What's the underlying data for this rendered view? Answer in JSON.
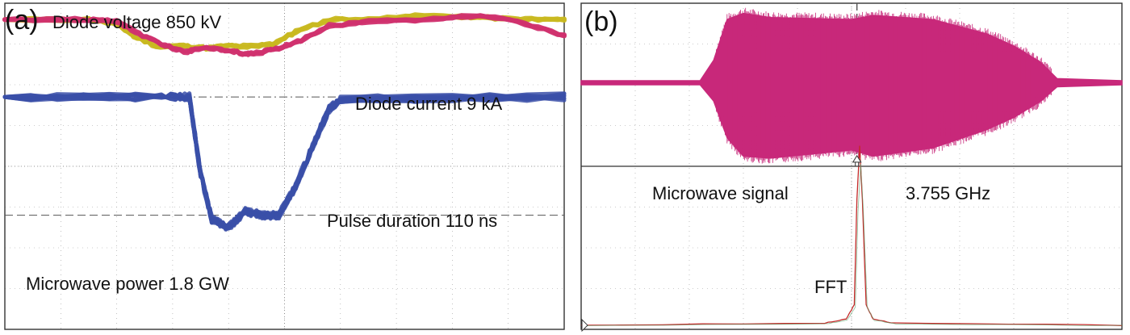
{
  "chart_data": [
    {
      "type": "line",
      "panel_label": "(a)",
      "annotations": {
        "voltage": "Diode voltage 850 kV",
        "current": "Diode current 9 kA",
        "duration": "Pulse duration 110 ns",
        "power": "Microwave power 1.8 GW"
      },
      "grid": true,
      "x_divisions": 10,
      "y_divisions": 8,
      "series": [
        {
          "name": "Diode voltage 850 kV",
          "color": "#c8b820",
          "x": [
            0,
            1.5,
            2.0,
            2.3,
            2.7,
            3.2,
            3.6,
            4.0,
            4.4,
            4.8,
            5.2,
            5.8,
            6.5,
            7.5,
            8.5,
            9.3,
            10
          ],
          "y": [
            7.6,
            7.6,
            7.5,
            7.2,
            6.95,
            6.95,
            6.9,
            6.95,
            6.95,
            7.0,
            7.3,
            7.6,
            7.6,
            7.7,
            7.65,
            7.6,
            7.6
          ]
        },
        {
          "name": "Diode current 9 kA",
          "color": "#d0306e",
          "x": [
            0,
            1.5,
            2.0,
            2.4,
            2.8,
            3.2,
            3.6,
            4.0,
            4.3,
            4.6,
            4.9,
            5.3,
            5.8,
            6.5,
            7.5,
            8.5,
            9.3,
            10
          ],
          "y": [
            7.6,
            7.6,
            7.55,
            7.25,
            7.0,
            6.8,
            6.9,
            6.85,
            6.75,
            6.8,
            6.9,
            7.1,
            7.45,
            7.55,
            7.6,
            7.7,
            7.5,
            7.2
          ]
        },
        {
          "name": "Microwave power 1.8 GW",
          "color": "#3a4fa8",
          "x": [
            0,
            2.8,
            3.3,
            3.5,
            3.7,
            4.0,
            4.3,
            4.6,
            4.9,
            5.2,
            5.5,
            5.8,
            6.0,
            10
          ],
          "y": [
            5.7,
            5.7,
            5.7,
            3.8,
            2.7,
            2.5,
            2.9,
            2.8,
            2.8,
            3.5,
            4.5,
            5.4,
            5.65,
            5.7
          ]
        }
      ]
    },
    {
      "type": "line",
      "panel_label": "(b)",
      "annotations": {
        "signal": "Microwave signal",
        "frequency": "3.755 GHz",
        "fft": "FFT"
      },
      "grid": true,
      "x_divisions": 10,
      "y_divisions": 8,
      "series": [
        {
          "name": "Microwave signal",
          "color": "#c8287a",
          "envelope_x": [
            0,
            2.2,
            2.45,
            2.7,
            3.0,
            3.5,
            5.0,
            5.4,
            6.5,
            7.5,
            8.0,
            8.5,
            8.8,
            10
          ],
          "envelope_upper": [
            6.1,
            6.1,
            6.6,
            7.6,
            7.75,
            7.65,
            7.6,
            7.7,
            7.6,
            7.25,
            6.95,
            6.55,
            6.15,
            6.1
          ],
          "envelope_lower": [
            6.0,
            6.0,
            5.6,
            4.7,
            4.25,
            4.2,
            4.4,
            4.25,
            4.45,
            4.9,
            5.2,
            5.6,
            5.95,
            6.0
          ]
        },
        {
          "name": "FFT",
          "color": "#c42a2a",
          "x": [
            0,
            4.5,
            4.9,
            5.05,
            5.1,
            5.15,
            5.2,
            5.27,
            5.4,
            5.8,
            10
          ],
          "y": [
            0.1,
            0.15,
            0.25,
            0.6,
            3.2,
            4.5,
            3.2,
            0.6,
            0.25,
            0.15,
            0.1
          ]
        }
      ]
    }
  ]
}
